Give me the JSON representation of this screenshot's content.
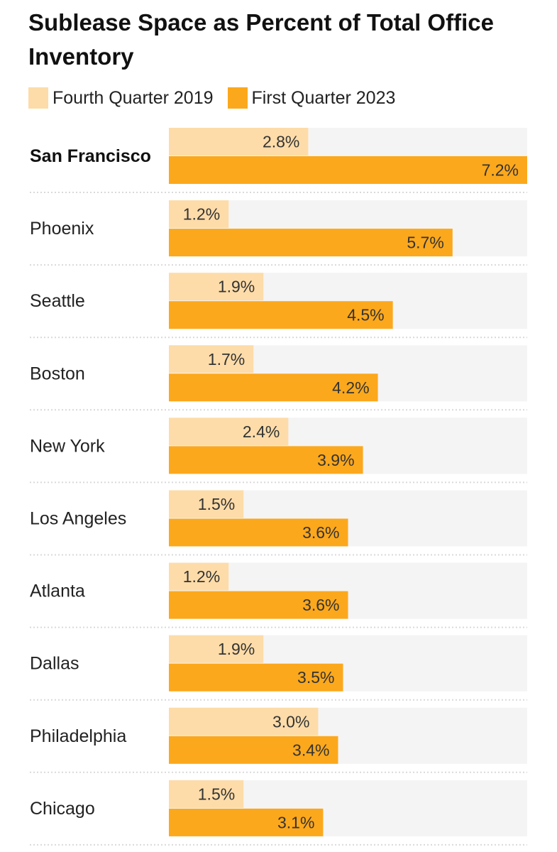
{
  "chart_data": {
    "type": "bar",
    "orientation": "horizontal",
    "title": "Sublease Space as Percent of Total Office Inventory",
    "categories": [
      "San Francisco",
      "Phoenix",
      "Seattle",
      "Boston",
      "New York",
      "Los Angeles",
      "Atlanta",
      "Dallas",
      "Philadelphia",
      "Chicago"
    ],
    "highlight_category": "San Francisco",
    "series": [
      {
        "name": "Fourth Quarter 2019",
        "color": "#fddca9",
        "values": [
          2.8,
          1.2,
          1.9,
          1.7,
          2.4,
          1.5,
          1.2,
          1.9,
          3.0,
          1.5
        ],
        "labels": [
          "2.8%",
          "1.2%",
          "1.9%",
          "1.7%",
          "2.4%",
          "1.5%",
          "1.2%",
          "1.9%",
          "3.0%",
          "1.5%"
        ]
      },
      {
        "name": "First Quarter 2023",
        "color": "#fca81c",
        "values": [
          7.2,
          5.7,
          4.5,
          4.2,
          3.9,
          3.6,
          3.6,
          3.5,
          3.4,
          3.1
        ],
        "labels": [
          "7.2%",
          "5.7%",
          "4.5%",
          "4.2%",
          "3.9%",
          "3.6%",
          "3.6%",
          "3.5%",
          "3.4%",
          "3.1%"
        ]
      }
    ],
    "xlim": [
      0,
      7.2
    ],
    "track_color": "#f4f4f4",
    "divider_color": "#d9d9d9",
    "grid": false,
    "legend_position": "top-left",
    "xlabel": "",
    "ylabel": ""
  }
}
